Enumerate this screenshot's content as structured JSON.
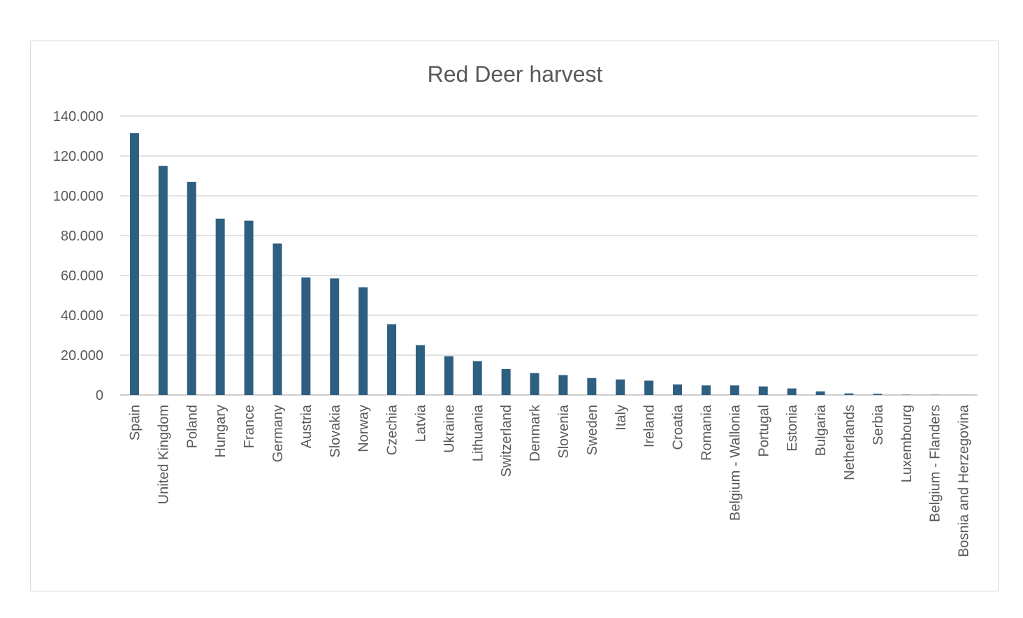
{
  "chart_data": {
    "type": "bar",
    "title": "Red Deer harvest",
    "xlabel": "",
    "ylabel": "",
    "ylim": [
      0,
      140000
    ],
    "yticks": [
      0,
      20000,
      40000,
      60000,
      80000,
      100000,
      120000,
      140000
    ],
    "ytick_labels": [
      "0",
      "20.000",
      "40.000",
      "60.000",
      "80.000",
      "100.000",
      "120.000",
      "140.000"
    ],
    "grid": true,
    "legend": "none",
    "bar_color": "#2e5f80",
    "categories": [
      "Spain",
      "United Kingdom",
      "Poland",
      "Hungary",
      "France",
      "Germany",
      "Austria",
      "Slovakia",
      "Norway",
      "Czechia",
      "Latvia",
      "Ukraine",
      "Lithuania",
      "Switzerland",
      "Denmark",
      "Slovenia",
      "Sweden",
      "Italy",
      "Ireland",
      "Croatia",
      "Romania",
      "Belgium - Wallonia",
      "Portugal",
      "Estonia",
      "Bulgaria",
      "Netherlands",
      "Serbia",
      "Luxembourg",
      "Belgium - Flanders",
      "Bosnia and Herzegovina"
    ],
    "values": [
      131500,
      115000,
      107000,
      88500,
      87500,
      76000,
      59000,
      58500,
      54000,
      35500,
      25000,
      19500,
      17000,
      13000,
      11000,
      10000,
      8500,
      7800,
      7200,
      5300,
      4800,
      4800,
      4300,
      3300,
      1800,
      800,
      600,
      150,
      100,
      50
    ]
  }
}
